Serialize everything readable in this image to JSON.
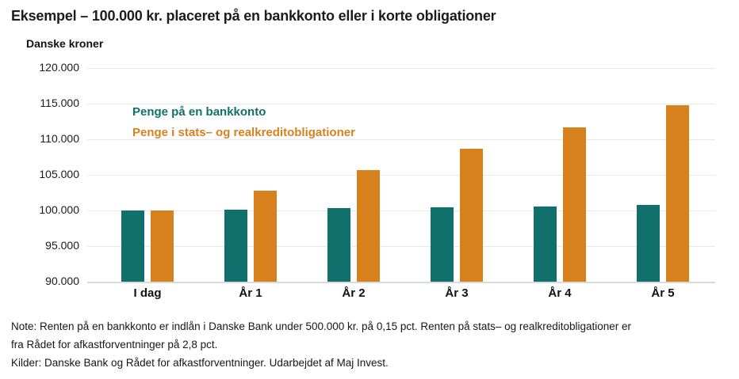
{
  "chart_data": {
    "type": "bar",
    "title": "Eksempel – 100.000 kr. placeret på en bankkonto eller i korte obligationer",
    "ylabel": "Danske kroner",
    "categories": [
      "I dag",
      "År 1",
      "År 2",
      "År 3",
      "År 4",
      "År 5"
    ],
    "series": [
      {
        "name": "Penge på en bankkonto",
        "color": "#11706B",
        "values": [
          100000,
          100150,
          100300,
          100451,
          100602,
          100752
        ]
      },
      {
        "name": "Penge i stats– og realkreditobligationer",
        "color": "#D6811E",
        "values": [
          100000,
          102800,
          105678,
          108637,
          111679,
          114806
        ]
      }
    ],
    "ylim": [
      90000,
      120000
    ],
    "ytick_labels": [
      "120.000",
      "115.000",
      "110.000",
      "105.000",
      "100.000",
      "95.000",
      "90.000"
    ],
    "grid": true,
    "legend_position": "inside-top-left"
  },
  "footnote": {
    "lines": [
      "Note: Renten på en bankkonto er indlån i Danske Bank under 500.000 kr. på 0,15 pct. Renten på stats– og realkreditobligationer er",
      "fra Rådet for afkastforventninger på 2,8 pct.",
      "Kilder: Danske Bank og Rådet for afkastforventninger. Udarbejdet af Maj Invest."
    ]
  }
}
